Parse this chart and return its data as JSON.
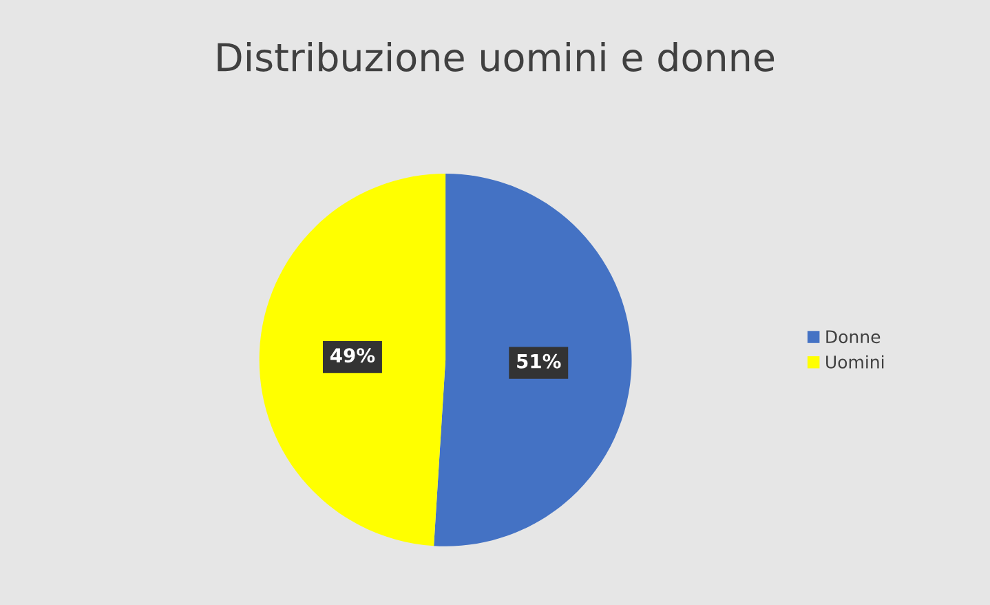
{
  "chart_data": {
    "type": "pie",
    "title": "Distribuzione uomini e donne",
    "categories": [
      "Donne",
      "Uomini"
    ],
    "values": [
      51,
      49
    ],
    "colors": [
      "#4472c4",
      "#ffff00"
    ],
    "value_labels": [
      "51%",
      "49%"
    ],
    "legend": "right"
  }
}
